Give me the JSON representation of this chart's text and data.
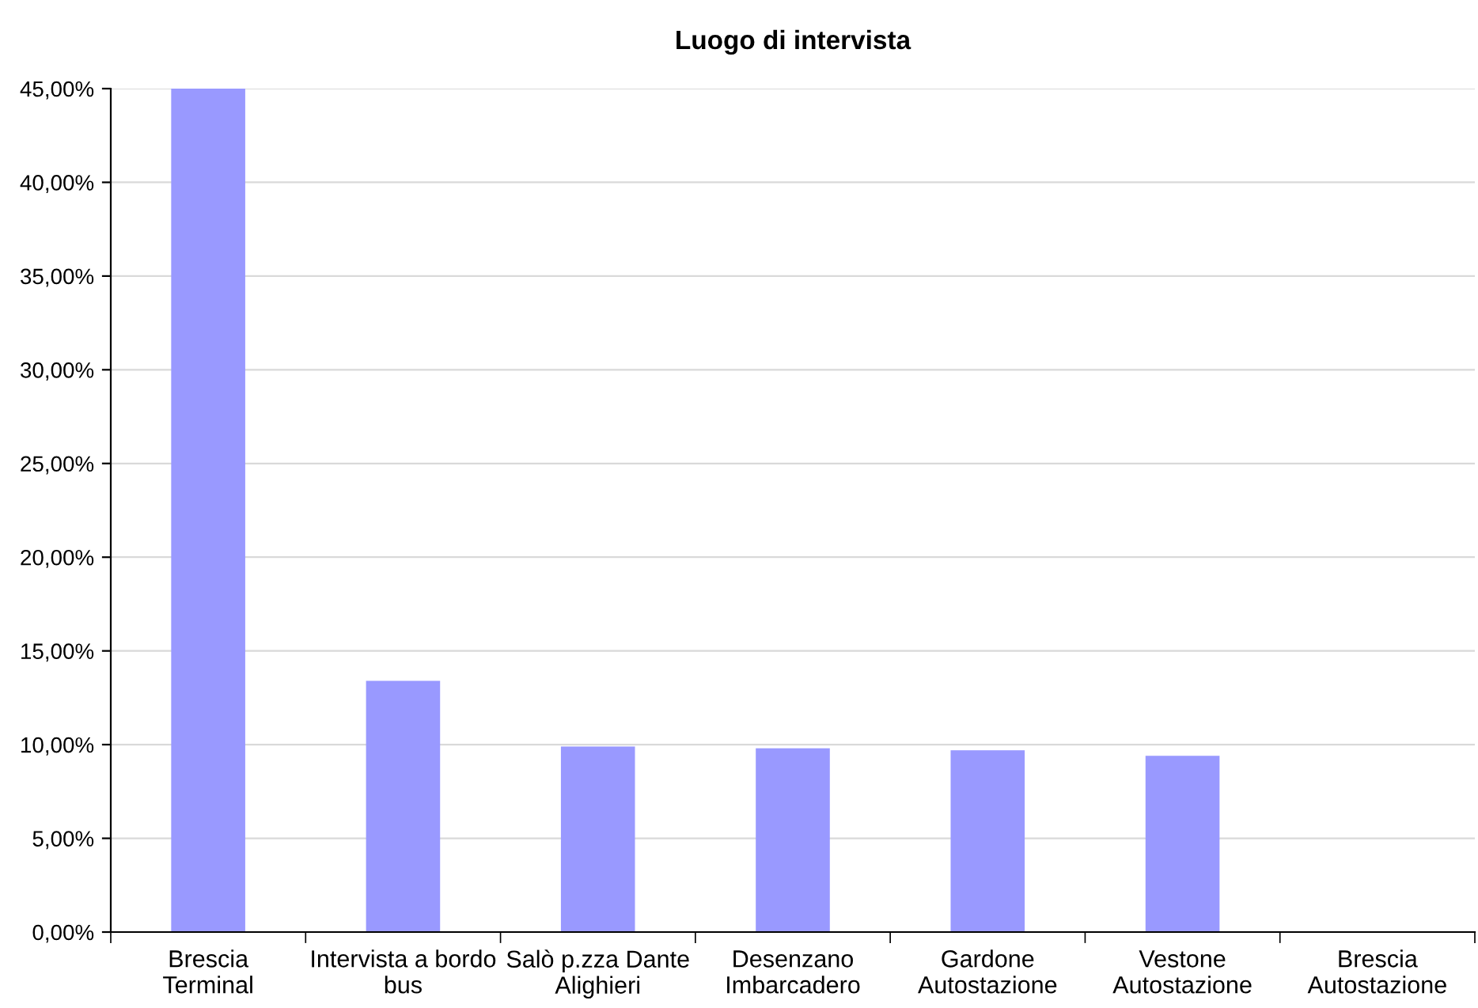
{
  "chart_data": {
    "type": "bar",
    "title": "Luogo di intervista",
    "categories": [
      "Brescia Terminal",
      "Intervista a bordo bus",
      "Salò p.zza Dante Alighieri",
      "Desenzano Imbarcadero",
      "Gardone Autostazione",
      "Vestone Autostazione",
      "Brescia Autostazione"
    ],
    "values": [
      45,
      13.4,
      9.9,
      9.8,
      9.7,
      9.4,
      0
    ],
    "color": "#9999ff",
    "ylim": [
      0,
      45
    ],
    "yticks": [
      {
        "value": 0,
        "label": "0,00%"
      },
      {
        "value": 5,
        "label": "5,00%"
      },
      {
        "value": 10,
        "label": "10,00%"
      },
      {
        "value": 15,
        "label": "15,00%"
      },
      {
        "value": 20,
        "label": "20,00%"
      },
      {
        "value": 25,
        "label": "25,00%"
      },
      {
        "value": 30,
        "label": "30,00%"
      },
      {
        "value": 35,
        "label": "35,00%"
      },
      {
        "value": 40,
        "label": "40,00%"
      },
      {
        "value": 45,
        "label": "45,00%"
      }
    ],
    "grid": "y"
  }
}
